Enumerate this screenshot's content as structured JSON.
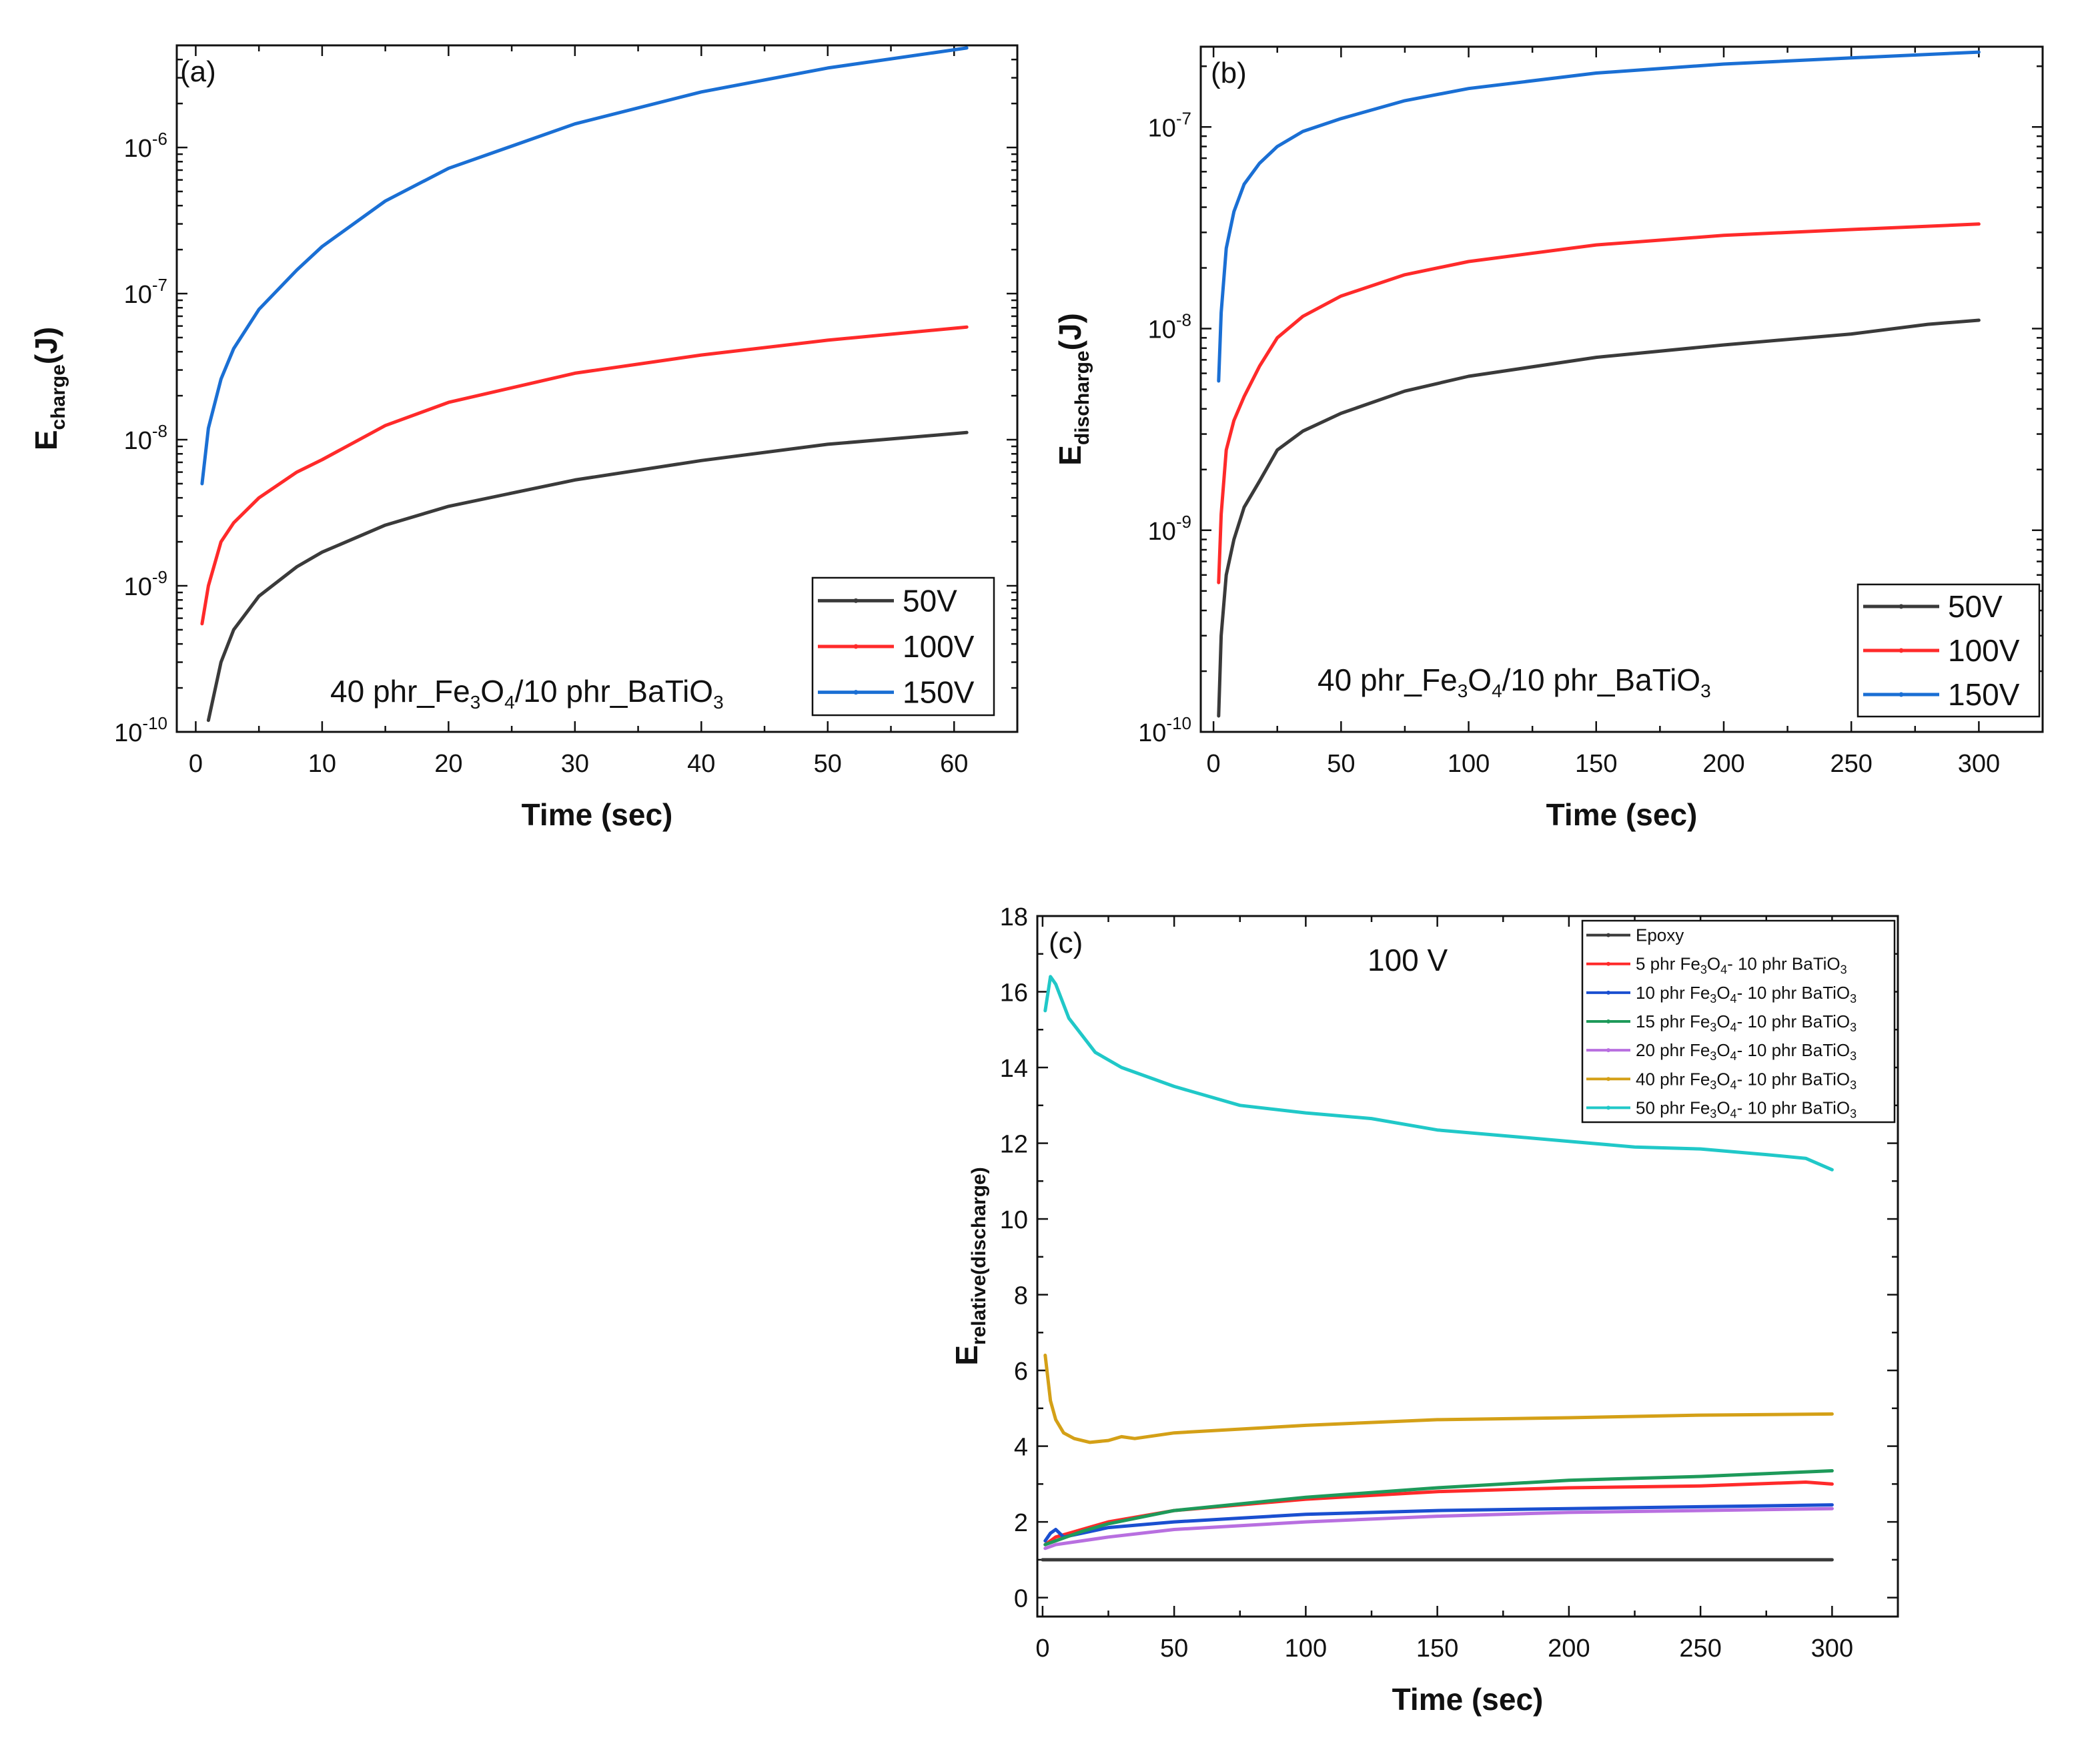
{
  "chart_data": [
    {
      "panel": "(a)",
      "type": "line",
      "yscale": "log",
      "xlabel": "Time (sec)",
      "ylabel": {
        "main": "E",
        "sub": "charge",
        "tail": "(J)"
      },
      "xlim": [
        -1.5,
        65
      ],
      "ylim": [
        1e-10,
        5e-06
      ],
      "xticks": [
        0,
        10,
        20,
        30,
        40,
        50,
        60
      ],
      "yticks": [
        {
          "value": 1e-10,
          "exp": "-10"
        },
        {
          "value": 1e-09,
          "exp": "-9"
        },
        {
          "value": 1e-08,
          "exp": "-8"
        },
        {
          "value": 1e-07,
          "exp": "-7"
        },
        {
          "value": 1e-06,
          "exp": "-6"
        }
      ],
      "annotation": {
        "base": "40 phr_Fe",
        "s1": "3",
        "mid1": "O",
        "s2": "4",
        "mid2": "/10 phr_BaTiO",
        "s3": "3"
      },
      "legend_position": "bottom-right",
      "series": [
        {
          "name": "50V",
          "color": "#3a3a3a",
          "x": [
            1,
            2,
            3,
            5,
            8,
            10,
            15,
            20,
            30,
            40,
            50,
            61
          ],
          "y": [
            1.2e-10,
            3e-10,
            5e-10,
            8.5e-10,
            1.35e-09,
            1.7e-09,
            2.6e-09,
            3.5e-09,
            5.3e-09,
            7.2e-09,
            9.3e-09,
            1.12e-08
          ]
        },
        {
          "name": "100V",
          "color": "#ff2a2a",
          "x": [
            0.5,
            1,
            2,
            3,
            5,
            8,
            10,
            15,
            20,
            30,
            40,
            50,
            61
          ],
          "y": [
            5.5e-10,
            1e-09,
            2e-09,
            2.7e-09,
            4e-09,
            6e-09,
            7.3e-09,
            1.25e-08,
            1.8e-08,
            2.85e-08,
            3.8e-08,
            4.8e-08,
            5.9e-08
          ]
        },
        {
          "name": "150V",
          "color": "#1a6fd4",
          "x": [
            0.5,
            1,
            2,
            3,
            5,
            8,
            10,
            15,
            20,
            30,
            40,
            50,
            61
          ],
          "y": [
            5e-09,
            1.2e-08,
            2.6e-08,
            4.2e-08,
            7.8e-08,
            1.45e-07,
            2.1e-07,
            4.3e-07,
            7.2e-07,
            1.45e-06,
            2.4e-06,
            3.5e-06,
            4.8e-06
          ]
        }
      ]
    },
    {
      "panel": "(b)",
      "type": "line",
      "yscale": "log",
      "xlabel": "Time (sec)",
      "ylabel": {
        "main": "E",
        "sub": "discharge",
        "tail": "(J)"
      },
      "xlim": [
        -5,
        325
      ],
      "ylim": [
        1e-10,
        2.5e-07
      ],
      "xticks": [
        0,
        50,
        100,
        150,
        200,
        250,
        300
      ],
      "yticks": [
        {
          "value": 1e-10,
          "exp": "-10"
        },
        {
          "value": 1e-09,
          "exp": "-9"
        },
        {
          "value": 1e-08,
          "exp": "-8"
        },
        {
          "value": 1e-07,
          "exp": "-7"
        }
      ],
      "annotation": {
        "base": "40 phr_Fe",
        "s1": "3",
        "mid1": "O",
        "s2": "4",
        "mid2": "/10 phr_BaTiO",
        "s3": "3"
      },
      "legend_position": "bottom-right",
      "series": [
        {
          "name": "50V",
          "color": "#3a3a3a",
          "x": [
            2,
            3,
            5,
            8,
            12,
            18,
            25,
            35,
            50,
            75,
            100,
            150,
            200,
            250,
            280,
            300
          ],
          "y": [
            1.2e-10,
            3e-10,
            6e-10,
            9e-10,
            1.3e-09,
            1.75e-09,
            2.5e-09,
            3.1e-09,
            3.8e-09,
            4.9e-09,
            5.8e-09,
            7.2e-09,
            8.3e-09,
            9.4e-09,
            1.05e-08,
            1.1e-08
          ]
        },
        {
          "name": "100V",
          "color": "#ff2a2a",
          "x": [
            2,
            3,
            5,
            8,
            12,
            18,
            25,
            35,
            50,
            75,
            100,
            150,
            200,
            250,
            300
          ],
          "y": [
            5.5e-10,
            1.2e-09,
            2.5e-09,
            3.5e-09,
            4.6e-09,
            6.5e-09,
            9e-09,
            1.15e-08,
            1.45e-08,
            1.85e-08,
            2.15e-08,
            2.6e-08,
            2.9e-08,
            3.1e-08,
            3.3e-08
          ]
        },
        {
          "name": "150V",
          "color": "#1a6fd4",
          "x": [
            2,
            3,
            5,
            8,
            12,
            18,
            25,
            35,
            50,
            75,
            100,
            150,
            200,
            250,
            300
          ],
          "y": [
            5.5e-09,
            1.2e-08,
            2.5e-08,
            3.8e-08,
            5.2e-08,
            6.6e-08,
            8e-08,
            9.5e-08,
            1.1e-07,
            1.35e-07,
            1.55e-07,
            1.85e-07,
            2.05e-07,
            2.2e-07,
            2.35e-07
          ]
        }
      ]
    },
    {
      "panel": "(c)",
      "type": "line",
      "yscale": "linear",
      "xlabel": "Time (sec)",
      "ylabel": {
        "main": "E",
        "sub": "relative(discharge)",
        "tail": ""
      },
      "xlim": [
        -2,
        325
      ],
      "ylim": [
        -0.5,
        18
      ],
      "xticks": [
        0,
        50,
        100,
        150,
        200,
        250,
        300
      ],
      "yticks": [
        0,
        2,
        4,
        6,
        8,
        10,
        12,
        14,
        16,
        18
      ],
      "annotation_text": "100 V",
      "legend_position": "top-right",
      "series": [
        {
          "name": "Epoxy",
          "label": {
            "a": "Epoxy"
          },
          "color": "#3a3a3a",
          "x": [
            0,
            300
          ],
          "y": [
            1,
            1
          ]
        },
        {
          "name": "5 phr Fe3O4- 10 phr BaTiO3",
          "label": {
            "a": "5 phr Fe",
            "s1": "3",
            "b": "O",
            "s2": "4",
            "c": "- 10 phr BaTiO",
            "s3": "3"
          },
          "color": "#ff2a2a",
          "x": [
            1,
            5,
            10,
            25,
            50,
            100,
            150,
            200,
            250,
            290,
            300
          ],
          "y": [
            1.4,
            1.6,
            1.7,
            2.0,
            2.3,
            2.6,
            2.8,
            2.9,
            2.95,
            3.05,
            3.0
          ]
        },
        {
          "name": "10 phr Fe3O4- 10 phr BaTiO3",
          "label": {
            "a": "10 phr Fe",
            "s1": "3",
            "b": "O",
            "s2": "4",
            "c": "- 10 phr BaTiO",
            "s3": "3"
          },
          "color": "#1a4fd0",
          "x": [
            1,
            3,
            5,
            8,
            15,
            25,
            50,
            100,
            150,
            200,
            250,
            300
          ],
          "y": [
            1.5,
            1.7,
            1.8,
            1.6,
            1.7,
            1.85,
            2.0,
            2.2,
            2.3,
            2.35,
            2.4,
            2.45
          ]
        },
        {
          "name": "15 phr Fe3O4- 10 phr BaTiO3",
          "label": {
            "a": "15 phr Fe",
            "s1": "3",
            "b": "O",
            "s2": "4",
            "c": "- 10 phr BaTiO",
            "s3": "3"
          },
          "color": "#1e9a5a",
          "x": [
            1,
            5,
            15,
            25,
            50,
            100,
            150,
            200,
            250,
            300
          ],
          "y": [
            1.4,
            1.5,
            1.75,
            1.95,
            2.3,
            2.65,
            2.9,
            3.1,
            3.2,
            3.35
          ]
        },
        {
          "name": "20 phr Fe3O4- 10 phr BaTiO3",
          "label": {
            "a": "20 phr Fe",
            "s1": "3",
            "b": "O",
            "s2": "4",
            "c": "- 10 phr BaTiO",
            "s3": "3"
          },
          "color": "#b86fe0",
          "x": [
            1,
            5,
            15,
            25,
            50,
            100,
            150,
            200,
            250,
            300
          ],
          "y": [
            1.3,
            1.4,
            1.5,
            1.6,
            1.8,
            2.0,
            2.15,
            2.25,
            2.3,
            2.35
          ]
        },
        {
          "name": "40 phr Fe3O4- 10 phr BaTiO3",
          "label": {
            "a": "40 phr Fe",
            "s1": "3",
            "b": "O",
            "s2": "4",
            "c": "- 10 phr BaTiO",
            "s3": "3"
          },
          "color": "#d4a017",
          "x": [
            1,
            3,
            5,
            8,
            12,
            18,
            25,
            30,
            35,
            50,
            100,
            150,
            200,
            250,
            300
          ],
          "y": [
            6.4,
            5.2,
            4.7,
            4.35,
            4.2,
            4.1,
            4.15,
            4.25,
            4.2,
            4.35,
            4.55,
            4.7,
            4.75,
            4.82,
            4.85
          ]
        },
        {
          "name": "50 phr Fe3O4- 10 phr BaTiO3",
          "label": {
            "a": "50 phr Fe",
            "s1": "3",
            "b": "O",
            "s2": "4",
            "c": "- 10 phr BaTiO",
            "s3": "3"
          },
          "color": "#20c8c8",
          "x": [
            1,
            3,
            5,
            10,
            20,
            30,
            50,
            75,
            100,
            125,
            150,
            175,
            200,
            225,
            250,
            275,
            290,
            300
          ],
          "y": [
            15.5,
            16.4,
            16.2,
            15.3,
            14.4,
            14.0,
            13.5,
            13.0,
            12.8,
            12.65,
            12.35,
            12.2,
            12.05,
            11.9,
            11.85,
            11.7,
            11.6,
            11.3
          ]
        }
      ]
    }
  ]
}
